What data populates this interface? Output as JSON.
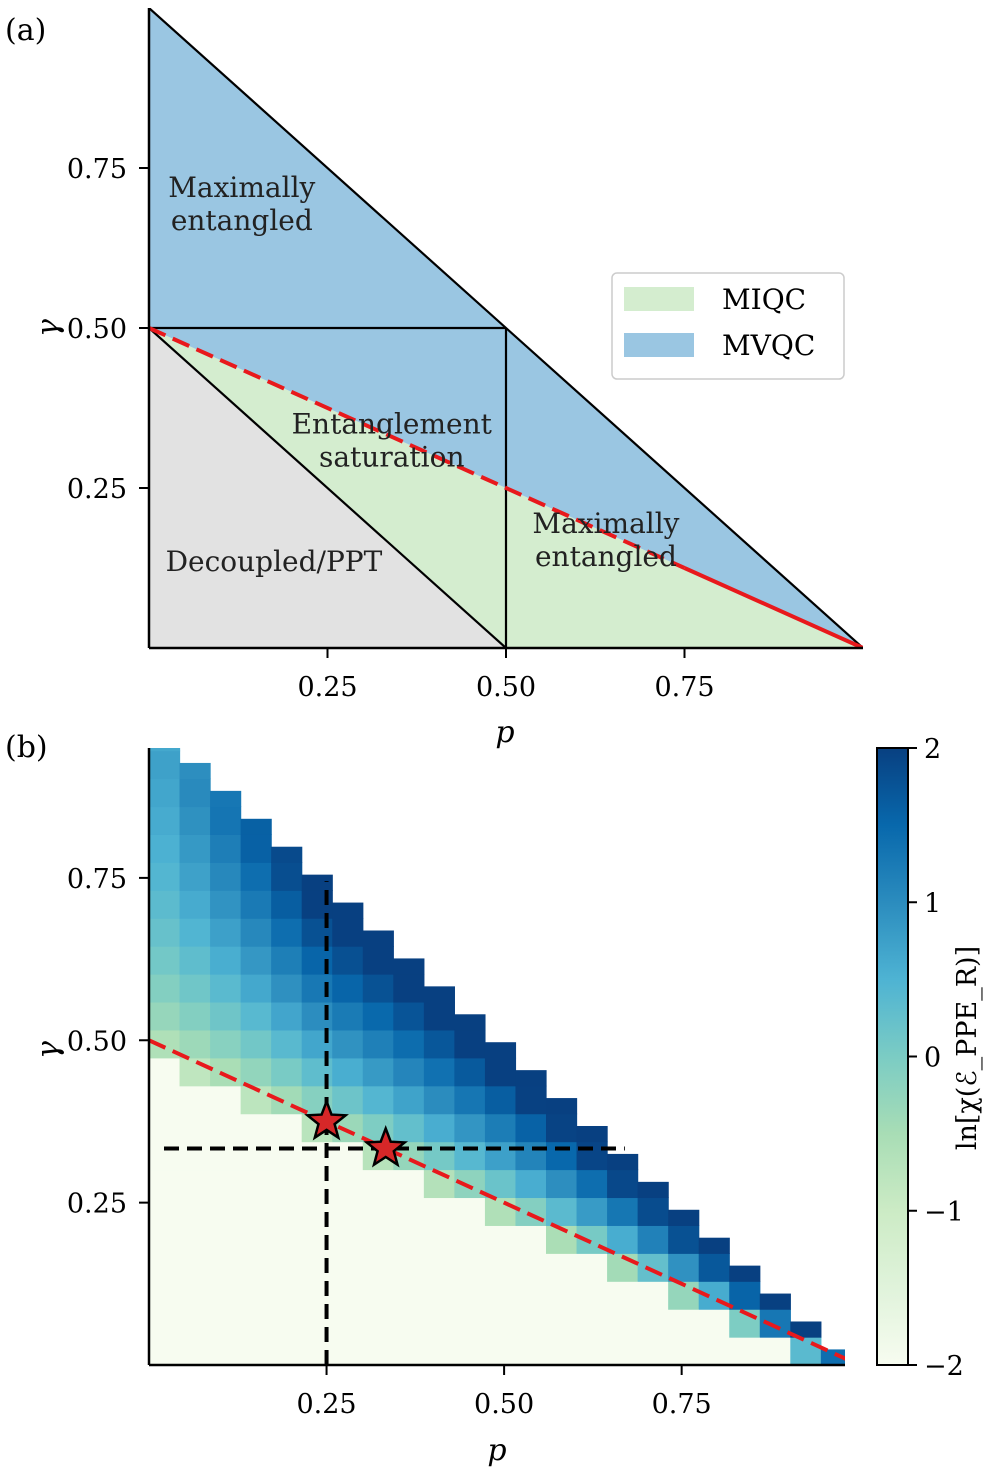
{
  "chart_data": [
    {
      "panel": "(a)",
      "type": "area",
      "title": "",
      "xlabel": "p",
      "ylabel": "γ",
      "xlim": [
        0,
        1
      ],
      "ylim": [
        0,
        1
      ],
      "xticks": [
        {
          "value": 0.25,
          "label": "0.25"
        },
        {
          "value": 0.5,
          "label": "0.50"
        },
        {
          "value": 0.75,
          "label": "0.75"
        }
      ],
      "yticks": [
        {
          "value": 0.25,
          "label": "0.25"
        },
        {
          "value": 0.5,
          "label": "0.50"
        },
        {
          "value": 0.75,
          "label": "0.75"
        }
      ],
      "legend": {
        "placement": "center-right",
        "entries": [
          {
            "label": "MIQC",
            "color": "#d4edcf"
          },
          {
            "label": "MVQC",
            "color": "#9ac6e2"
          }
        ]
      },
      "regions": [
        {
          "name": "decoupled",
          "color": "#e2e2e2",
          "points": [
            [
              0,
              0
            ],
            [
              0,
              0.5
            ],
            [
              0.5,
              0
            ]
          ]
        },
        {
          "name": "miqc",
          "color": "#d4edcf",
          "points": [
            [
              0,
              0.5
            ],
            [
              0.5,
              0
            ],
            [
              1,
              0
            ],
            [
              0.5,
              0.25
            ]
          ]
        },
        {
          "name": "mvqc",
          "color": "#9ac6e2",
          "points": [
            [
              0,
              0.5
            ],
            [
              0,
              1
            ],
            [
              1,
              0
            ],
            [
              0.5,
              0.25
            ]
          ]
        }
      ],
      "black_lines": [
        [
          [
            0,
            1
          ],
          [
            1,
            0
          ]
        ],
        [
          [
            0,
            0.5
          ],
          [
            0.5,
            0
          ]
        ],
        [
          [
            0,
            0.5
          ],
          [
            0.5,
            0.5
          ]
        ],
        [
          [
            0.5,
            0.5
          ],
          [
            0.5,
            0
          ]
        ]
      ],
      "red_line": {
        "color": "#e8191c",
        "dashed_segment": [
          [
            0,
            0.5
          ],
          [
            0.75,
            0.125
          ]
        ],
        "solid_segment": [
          [
            0.75,
            0.125
          ],
          [
            1,
            0
          ]
        ]
      },
      "annotations": [
        {
          "lines": [
            "Maximally",
            "entangled"
          ],
          "x": 0.13,
          "y": 0.705
        },
        {
          "lines": [
            "Entanglement",
            "saturation"
          ],
          "x": 0.34,
          "y": 0.335
        },
        {
          "lines": [
            "Maximally",
            "entangled"
          ],
          "x": 0.64,
          "y": 0.18
        },
        {
          "lines": [
            "Decoupled/PPT"
          ],
          "x": 0.175,
          "y": 0.12
        }
      ]
    },
    {
      "panel": "(b)",
      "type": "heatmap",
      "title": "",
      "xlabel": "p",
      "ylabel": "γ",
      "xlim": [
        0.0,
        0.98
      ],
      "ylim": [
        0.0,
        0.95
      ],
      "cell_size": 0.043,
      "xticks": [
        {
          "value": 0.25,
          "label": "0.25"
        },
        {
          "value": 0.5,
          "label": "0.50"
        },
        {
          "value": 0.75,
          "label": "0.75"
        }
      ],
      "yticks": [
        {
          "value": 0.25,
          "label": "0.25"
        },
        {
          "value": 0.5,
          "label": "0.50"
        },
        {
          "value": 0.75,
          "label": "0.75"
        }
      ],
      "colorbar": {
        "label": "ln[χ(ℰ_PPE_R)]",
        "range": [
          -2,
          2
        ],
        "ticks": [
          {
            "value": 2,
            "label": "2"
          },
          {
            "value": 1,
            "label": "1"
          },
          {
            "value": 0,
            "label": "0"
          },
          {
            "value": -1,
            "label": "−1"
          },
          {
            "value": -2,
            "label": "−2"
          }
        ],
        "colormap": "GnBu"
      },
      "value_model": "ln chi ≈ -2 below the line gamma = (1-p)/2; above it rises with distance from the line, peaking near 2 in the upper middle of the triangle",
      "red_line": {
        "color": "#e8191c",
        "style": "dashed",
        "points": [
          [
            0,
            0.5
          ],
          [
            1,
            0
          ]
        ]
      },
      "guide_lines": {
        "vertical": {
          "p": 0.25,
          "gamma_max": 0.745
        },
        "horizontal": {
          "gamma": 0.3333,
          "p_max": 0.67
        }
      },
      "stars": [
        {
          "p": 0.25,
          "gamma": 0.375
        },
        {
          "p": 0.3333,
          "gamma": 0.3333
        }
      ]
    }
  ]
}
